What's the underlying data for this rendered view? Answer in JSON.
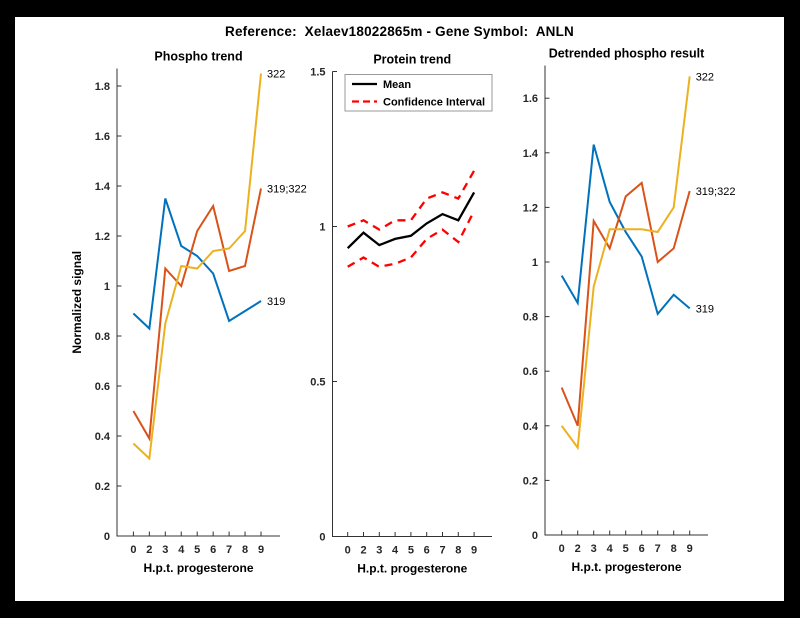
{
  "figure": {
    "title": "Reference:  Xelaev18022865m - Gene Symbol:  ANLN",
    "frame_color": "#000000",
    "background": "#ffffff"
  },
  "palette": {
    "blue": "#0072BD",
    "orange": "#D95319",
    "yellow": "#EDB120",
    "red": "#FF0000",
    "black": "#000000",
    "axis": "#333333",
    "legend_border": "#999999"
  },
  "chart_data": [
    {
      "type": "line",
      "title": "Phospho trend",
      "xlabel": "H.p.t. progesterone",
      "ylabel": "Normalized signal",
      "x": [
        0,
        2,
        3,
        4,
        5,
        6,
        7,
        8,
        9
      ],
      "x_ticklabels": [
        "0",
        "2",
        "3",
        "4",
        "5",
        "6",
        "7",
        "8",
        "9"
      ],
      "ylim": [
        0,
        1.87
      ],
      "ytick_values": [
        0,
        0.2,
        0.4,
        0.6,
        0.8,
        1,
        1.2,
        1.4,
        1.6,
        1.8
      ],
      "ytick_labels": [
        "0",
        "0.2",
        "0.4",
        "0.6",
        "0.8",
        "1",
        "1.2",
        "1.4",
        "1.6",
        "1.8"
      ],
      "grid": false,
      "series": [
        {
          "name": "319",
          "color": "#0072BD",
          "dash": "solid",
          "values": [
            0.89,
            0.83,
            1.35,
            1.16,
            1.12,
            1.05,
            0.86,
            0.9,
            0.94
          ],
          "end_label": "319"
        },
        {
          "name": "319;322",
          "color": "#D95319",
          "dash": "solid",
          "values": [
            0.5,
            0.39,
            1.07,
            1.0,
            1.22,
            1.32,
            1.06,
            1.08,
            1.39
          ],
          "end_label": "319;322"
        },
        {
          "name": "322",
          "color": "#EDB120",
          "dash": "solid",
          "values": [
            0.37,
            0.31,
            0.85,
            1.08,
            1.07,
            1.14,
            1.15,
            1.22,
            1.85
          ],
          "end_label": "322"
        }
      ]
    },
    {
      "type": "line",
      "title": "Protein trend",
      "xlabel": "H.p.t. progesterone",
      "ylabel": "",
      "x": [
        0,
        2,
        3,
        4,
        5,
        6,
        7,
        8,
        9
      ],
      "x_ticklabels": [
        "0",
        "2",
        "3",
        "4",
        "5",
        "6",
        "7",
        "8",
        "9"
      ],
      "ylim": [
        0,
        1.5
      ],
      "ytick_values": [
        0,
        0.5,
        1,
        1.5
      ],
      "ytick_labels": [
        "0",
        "0.5",
        "1",
        "1.5"
      ],
      "grid": false,
      "legend": {
        "position": "northwest",
        "items": [
          {
            "label": "Mean",
            "color": "#000000",
            "dash": "solid"
          },
          {
            "label": "Confidence Interval",
            "color": "#FF0000",
            "dash": "dashed"
          }
        ]
      },
      "series": [
        {
          "name": "Mean",
          "color": "#000000",
          "dash": "solid",
          "values": [
            0.93,
            0.98,
            0.94,
            0.96,
            0.97,
            1.01,
            1.04,
            1.02,
            1.11
          ]
        },
        {
          "name": "Confidence Interval upper",
          "color": "#FF0000",
          "dash": "dashed",
          "values": [
            1.0,
            1.02,
            0.99,
            1.02,
            1.02,
            1.09,
            1.11,
            1.09,
            1.18
          ]
        },
        {
          "name": "Confidence Interval lower",
          "color": "#FF0000",
          "dash": "dashed",
          "values": [
            0.87,
            0.9,
            0.87,
            0.88,
            0.9,
            0.96,
            0.99,
            0.95,
            1.05
          ]
        }
      ]
    },
    {
      "type": "line",
      "title": "Detrended phospho result",
      "xlabel": "H.p.t. progesterone",
      "ylabel": "",
      "x": [
        0,
        2,
        3,
        4,
        5,
        6,
        7,
        8,
        9
      ],
      "x_ticklabels": [
        "0",
        "2",
        "3",
        "4",
        "5",
        "6",
        "7",
        "8",
        "9"
      ],
      "ylim": [
        0,
        1.72
      ],
      "ytick_values": [
        0,
        0.2,
        0.4,
        0.6,
        0.8,
        1,
        1.2,
        1.4,
        1.6
      ],
      "ytick_labels": [
        "0",
        "0.2",
        "0.4",
        "0.6",
        "0.8",
        "1",
        "1.2",
        "1.4",
        "1.6"
      ],
      "grid": false,
      "series": [
        {
          "name": "319",
          "color": "#0072BD",
          "dash": "solid",
          "values": [
            0.95,
            0.85,
            1.43,
            1.22,
            1.11,
            1.02,
            0.81,
            0.88,
            0.83
          ],
          "end_label": "319"
        },
        {
          "name": "319;322",
          "color": "#D95319",
          "dash": "solid",
          "values": [
            0.54,
            0.4,
            1.15,
            1.05,
            1.24,
            1.29,
            1.0,
            1.05,
            1.26
          ],
          "end_label": "319;322"
        },
        {
          "name": "322",
          "color": "#EDB120",
          "dash": "solid",
          "values": [
            0.4,
            0.32,
            0.91,
            1.12,
            1.12,
            1.12,
            1.11,
            1.2,
            1.68
          ],
          "end_label": "322"
        }
      ]
    }
  ]
}
